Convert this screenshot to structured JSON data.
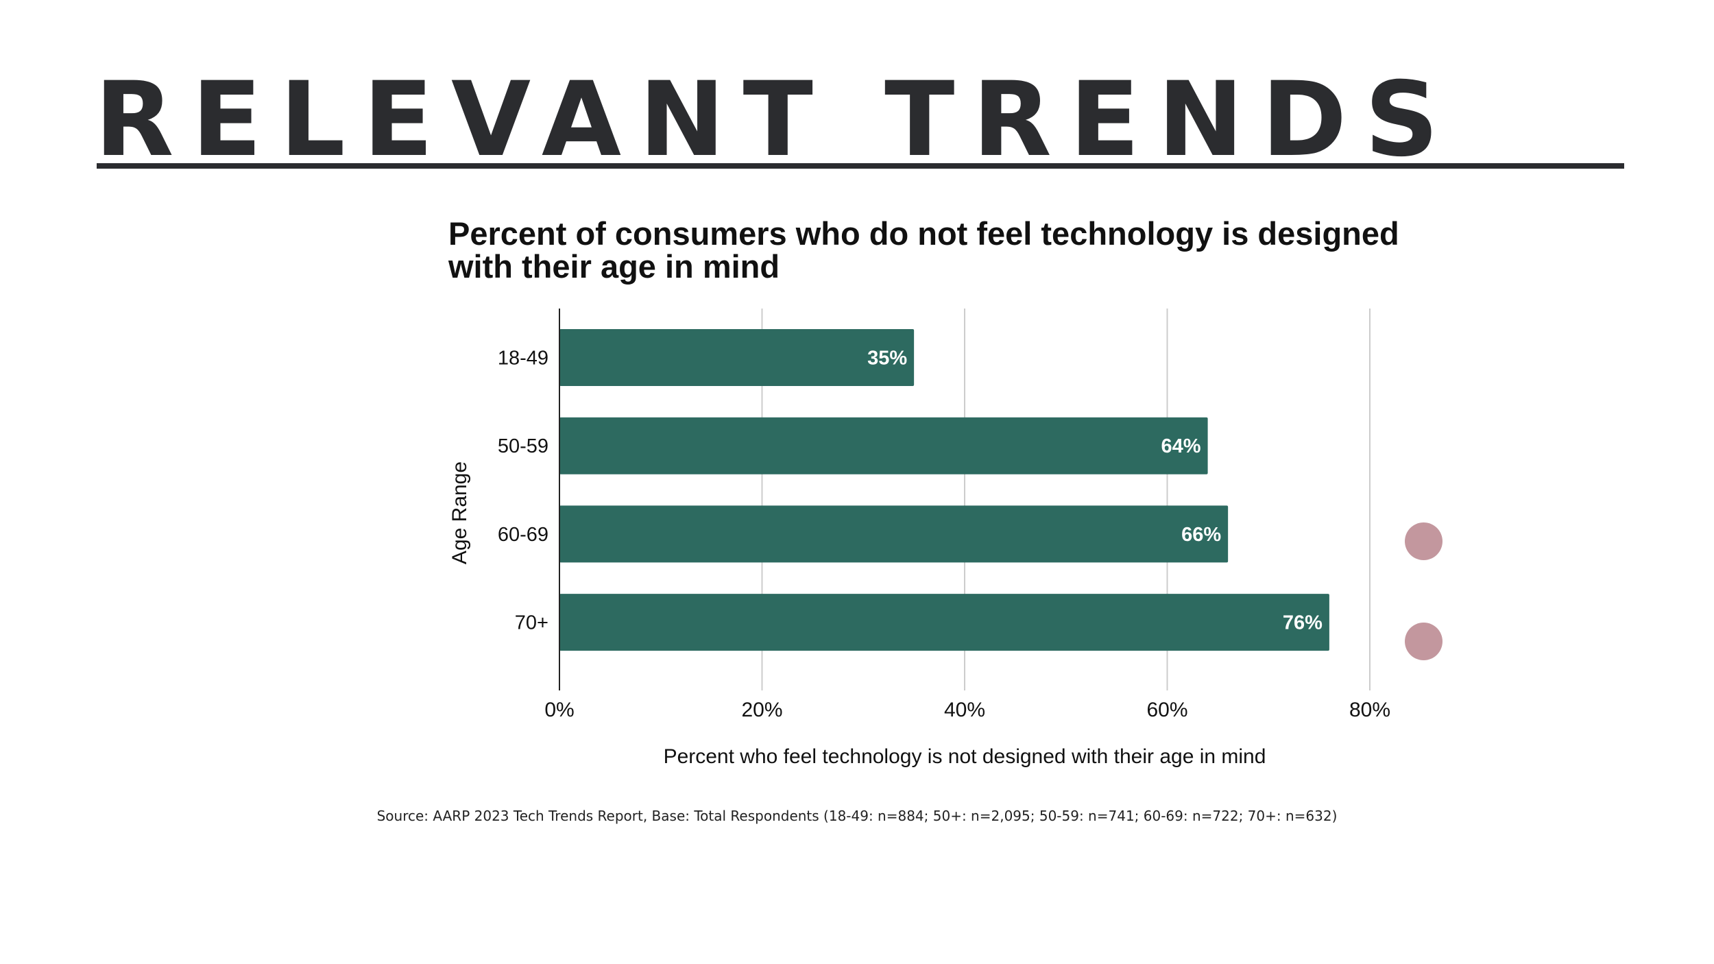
{
  "page": {
    "title": "RELEVANT TRENDS",
    "source_note": "Source: AARP 2023 Tech Trends Report, Base: Total Respondents (18-49: n=884; 50+: n=2,095; 50-59: n=741; 60-69: n=722; 70+: n=632)"
  },
  "colors": {
    "bar": "#2d6a60",
    "title": "#2b2c2f",
    "grid": "#cccccc",
    "axis": "#222222",
    "dot": "#c3979e"
  },
  "chart_data": {
    "type": "bar",
    "orientation": "horizontal",
    "title": "Percent of consumers who do not feel technology is designed with their age in mind",
    "xlabel": "Percent who feel technology is not designed with their age in mind",
    "ylabel": "Age Range",
    "categories": [
      "18-49",
      "50-59",
      "60-69",
      "70+"
    ],
    "values": [
      35,
      64,
      66,
      76
    ],
    "data_labels": [
      "35%",
      "64%",
      "66%",
      "76%"
    ],
    "xlim": [
      0,
      80
    ],
    "x_ticks": [
      0,
      20,
      40,
      60,
      80
    ],
    "x_tick_labels": [
      "0%",
      "20%",
      "40%",
      "60%",
      "80%"
    ],
    "grid": true,
    "legend": "none"
  }
}
